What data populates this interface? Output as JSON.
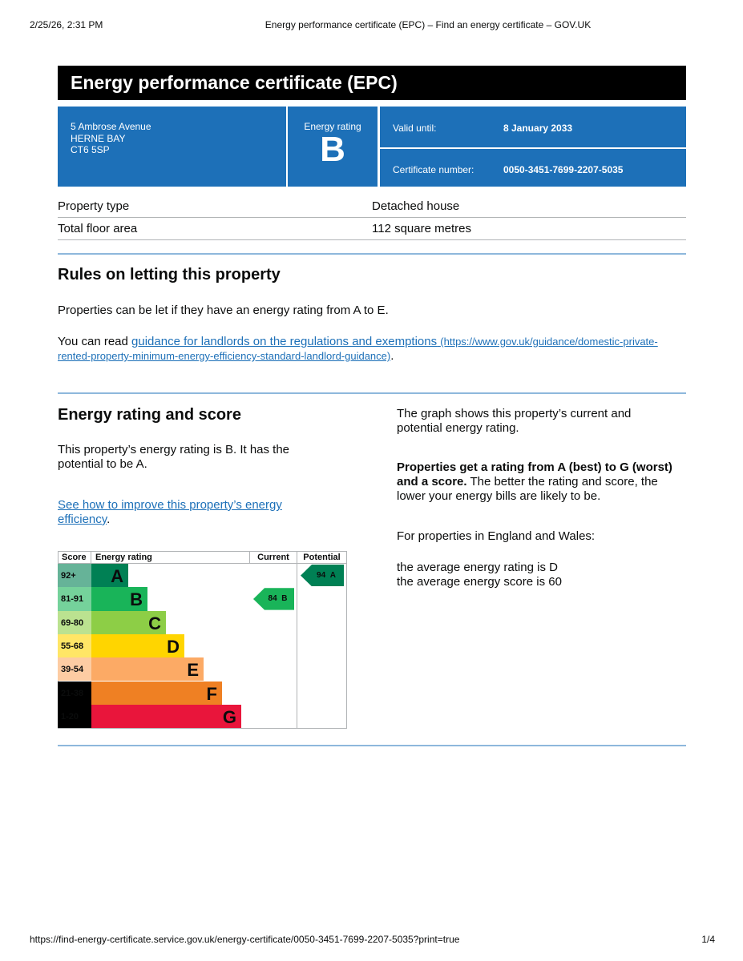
{
  "browser_header": {
    "date": "2/25/26, 2:31 PM",
    "title": "Energy performance certificate (EPC) – Find an energy certificate – GOV.UK"
  },
  "header": {
    "title": "Energy performance certificate (EPC)"
  },
  "summary": {
    "address": [
      "5 Ambrose Avenue",
      "HERNE BAY",
      "CT6 5SP"
    ],
    "rating_label": "Energy rating",
    "rating": "B",
    "valid_until_label": "Valid until:",
    "valid_until": "8 January 2033",
    "certificate_label": "Certificate number:",
    "certificate_number": "0050-3451-7699-2207-5035"
  },
  "property": {
    "rows": [
      [
        "Property type",
        "Detached house"
      ],
      [
        "Total floor area",
        "112 square metres"
      ]
    ]
  },
  "letting": {
    "heading": "Rules on letting this property",
    "paragraph": "Properties can be let if they have an energy rating from A to E.",
    "link_prefix": "You can read ",
    "link_text": "guidance for landlords on the regulations and exemptions",
    "link_url": "(https://www.gov.uk/guidance/domestic-private-rented-property-minimum-energy-efficiency-standard-landlord-guidance)",
    "link_suffix": "."
  },
  "energy": {
    "heading": "Energy rating and score",
    "paragraph": "This property’s energy rating is B. It has the potential to be A.",
    "link_text": "See how to improve this property’s energy efficiency",
    "link_suffix": ".",
    "chart": {
      "headers": [
        "Score",
        "Energy rating",
        "Current",
        "Potential"
      ],
      "bands": [
        {
          "score": "92+",
          "letter": "A"
        },
        {
          "score": "81-91",
          "letter": "B"
        },
        {
          "score": "69-80",
          "letter": "C"
        },
        {
          "score": "55-68",
          "letter": "D"
        },
        {
          "score": "39-54",
          "letter": "E"
        },
        {
          "score": "21-38",
          "letter": "F"
        },
        {
          "score": "1-20",
          "letter": "G"
        }
      ],
      "current": {
        "score": 84,
        "band": "B"
      },
      "potential": {
        "score": 94,
        "band": "A"
      }
    },
    "right": {
      "paragraph1": "The graph shows this property’s current and potential energy rating.",
      "bold": "Properties get a rating from A (best) to G (worst) and a score.",
      "paragraph2": " The better the rating and score, the lower your energy bills are likely to be.",
      "paragraph3": "For properties in England and Wales:",
      "average_rating": "the average energy rating is D",
      "average_score": "the average energy score is 60"
    }
  },
  "footer": {
    "url": "https://find-energy-certificate.service.gov.uk/energy-certificate/0050-3451-7699-2207-5035?print=true",
    "page": "1/4"
  }
}
